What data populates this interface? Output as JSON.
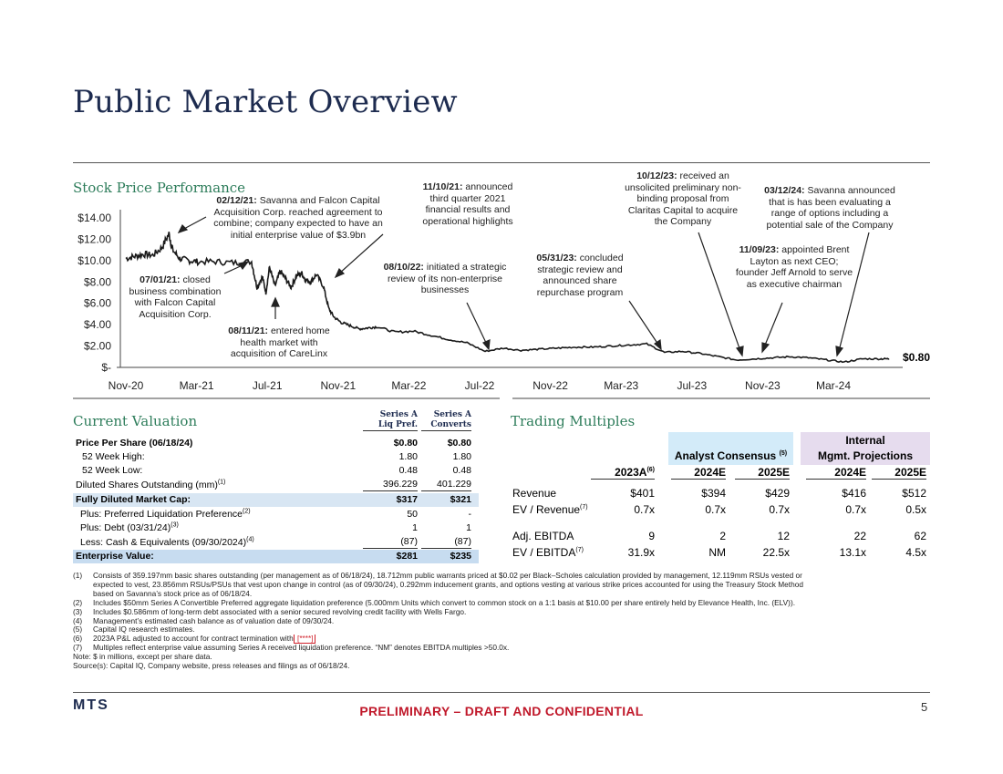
{
  "page": {
    "title": "Public Market Overview",
    "page_number": "5",
    "logo_text": "MTS",
    "footer": "PRELIMINARY – DRAFT AND CONFIDENTIAL"
  },
  "stock": {
    "heading": "Stock Price Performance",
    "last_price_label": "$0.80",
    "annotations": [
      {
        "date": "02/12/21:",
        "text": "Savanna and Falcon Capital Acquisition Corp. reached agreement to combine; company expected to have an initial enterprise value of $3.9bn"
      },
      {
        "date": "07/01/21:",
        "text": "closed business combination with Falcon Capital Acquisition Corp."
      },
      {
        "date": "08/11/21:",
        "text": "entered home health market with acquisition of CareLinx"
      },
      {
        "date": "11/10/21:",
        "text": "announced third quarter 2021 financial results and operational highlights"
      },
      {
        "date": "08/10/22:",
        "text": "initiated a strategic review of its non-enterprise businesses"
      },
      {
        "date": "05/31/23:",
        "text": "concluded strategic review and announced share repurchase program"
      },
      {
        "date": "10/12/23:",
        "text": "received an unsolicited preliminary non-binding proposal from Claritas Capital to acquire the Company"
      },
      {
        "date": "11/09/23:",
        "text": "appointed Brent Layton as next CEO; founder Jeff Arnold to serve as executive chairman"
      },
      {
        "date": "03/12/24:",
        "text": "Savanna announced that is has been evaluating a range of options including a potential sale of the Company"
      }
    ]
  },
  "chart_data": {
    "type": "line",
    "x_tick_labels": [
      "Nov-20",
      "Mar-21",
      "Jul-21",
      "Nov-21",
      "Mar-22",
      "Jul-22",
      "Nov-22",
      "Mar-23",
      "Jul-23",
      "Nov-23",
      "Mar-24"
    ],
    "y_tick_labels": [
      "$-",
      "$2.00",
      "$4.00",
      "$6.00",
      "$8.00",
      "$10.00",
      "$12.00",
      "$14.00"
    ],
    "ylim": [
      0,
      14
    ],
    "x_unit": "months since Nov-20",
    "xlim": [
      0,
      43
    ],
    "series": [
      {
        "name": "Stock Price",
        "x": [
          0,
          0.5,
          1,
          1.5,
          2,
          2.4,
          2.6,
          3,
          3.5,
          4,
          5,
          6,
          7,
          7.3,
          7.6,
          7.8,
          8,
          8.3,
          8.6,
          8.9,
          9.2,
          9.5,
          9.8,
          10,
          10.3,
          10.6,
          11,
          11.3,
          11.6,
          12,
          12.5,
          13,
          13.5,
          14,
          15,
          16,
          17,
          18,
          19,
          20,
          21,
          22,
          23,
          24,
          25,
          26,
          27,
          28,
          29,
          30,
          31,
          32,
          33,
          34,
          35,
          36,
          37,
          38,
          39,
          40,
          41,
          42,
          42.5
        ],
        "y": [
          10.2,
          10.4,
          10.6,
          10.5,
          11.2,
          12.5,
          11.0,
          10.2,
          10.0,
          9.9,
          9.9,
          9.8,
          9.9,
          7.5,
          8.5,
          7.0,
          9.4,
          7.6,
          9.0,
          8.3,
          7.5,
          8.6,
          8.8,
          8.2,
          8.0,
          8.7,
          7.6,
          5.5,
          4.7,
          4.2,
          3.9,
          3.6,
          3.7,
          3.8,
          3.3,
          3.4,
          3.0,
          2.6,
          2.3,
          1.5,
          1.8,
          1.6,
          1.7,
          1.8,
          1.9,
          1.9,
          2.0,
          2.1,
          2.2,
          1.4,
          1.5,
          1.3,
          1.0,
          0.7,
          0.8,
          0.9,
          1.0,
          0.9,
          0.7,
          0.5,
          0.8,
          0.8,
          0.8
        ]
      }
    ]
  },
  "valuation": {
    "heading": "Current Valuation",
    "col1_header": [
      "Series A",
      "Liq Pref."
    ],
    "col2_header": [
      "Series A",
      "Converts"
    ],
    "rows": [
      {
        "label": "Price Per Share (06/18/24)",
        "v1": "$0.80",
        "v2": "$0.80"
      },
      {
        "label": "52 Week High:",
        "v1": "1.80",
        "v2": "1.80"
      },
      {
        "label": "52 Week Low:",
        "v1": "0.48",
        "v2": "0.48"
      },
      {
        "label": "Diluted Shares Outstanding (mm)",
        "sup": "(1)",
        "v1": "396.229",
        "v2": "401.229"
      },
      {
        "label": "Fully Diluted Market Cap:",
        "v1": "$317",
        "v2": "$321"
      },
      {
        "label": "Plus: Preferred Liquidation Preference",
        "sup": "(2)",
        "v1": "50",
        "v2": "-"
      },
      {
        "label": "Plus: Debt (03/31/24)",
        "sup": "(3)",
        "v1": "1",
        "v2": "1"
      },
      {
        "label": "Less: Cash & Equivalents (09/30/2024)",
        "sup": "(4)",
        "v1": "(87)",
        "v2": "(87)"
      },
      {
        "label": "Enterprise Value:",
        "v1": "$281",
        "v2": "$235"
      }
    ]
  },
  "multiples": {
    "heading": "Trading Multiples",
    "group_analyst": "Analyst Consensus",
    "group_analyst_sup": "(5)",
    "group_internal": [
      "Internal",
      "Mgmt. Projections"
    ],
    "columns": [
      "2023A",
      "2024E",
      "2025E",
      "2024E",
      "2025E"
    ],
    "col0_sup": "(6)",
    "rows": [
      {
        "label": "Revenue",
        "values": [
          "$401",
          "$394",
          "$429",
          "$416",
          "$512"
        ]
      },
      {
        "label": "EV / Revenue",
        "sup": "(7)",
        "values": [
          "0.7x",
          "0.7x",
          "0.7x",
          "0.7x",
          "0.5x"
        ]
      },
      {
        "label": "Adj. EBITDA",
        "values": [
          "9",
          "2",
          "12",
          "22",
          "62"
        ]
      },
      {
        "label": "EV / EBITDA",
        "sup": "(7)",
        "values": [
          "31.9x",
          "NM",
          "22.5x",
          "13.1x",
          "4.5x"
        ]
      }
    ]
  },
  "footnotes": [
    {
      "num": "(1)",
      "lines": [
        "Consists of 359.197mm basic shares outstanding (per management as of 06/18/24), 18.712mm public warrants priced at $0.02 per Black–Scholes calculation provided by management, 12.119mm RSUs vested or",
        "expected to vest, 23.856mm RSUs/PSUs that vest upon change in control (as of 09/30/24), 0.292mm inducement grants, and options vesting at various strike prices accounted for using the Treasury Stock Method",
        "based on Savanna’s stock price as of 06/18/24."
      ]
    },
    {
      "num": "(2)",
      "lines": [
        "Includes $50mm Series A Convertible Preferred aggregate liquidation preference (5.000mm Units which convert to common stock on a 1:1 basis at $10.00 per share entirely held by Elevance Health, Inc. (ELV))."
      ]
    },
    {
      "num": "(3)",
      "lines": [
        "Includes $0.586mm of long-term debt associated with a senior secured revolving credit facility with Wells Fargo."
      ]
    },
    {
      "num": "(4)",
      "lines": [
        "Management’s estimated cash balance as of valuation date of 09/30/24."
      ]
    },
    {
      "num": "(5)",
      "lines": [
        "Capital IQ research estimates."
      ]
    },
    {
      "num": "(6)",
      "lines": [
        "2023A P&L adjusted to account for contract termination with"
      ],
      "flag": "[****]"
    },
    {
      "num": "(7)",
      "lines": [
        "Multiples reflect enterprise value assuming Series A received liquidation preference. “NM” denotes EBITDA multiples >50.0x."
      ]
    }
  ],
  "notes": [
    "Note: $ in millions, except per share data.",
    "Source(s): Capital IQ, Company website, press releases and filings as of 06/18/24."
  ]
}
